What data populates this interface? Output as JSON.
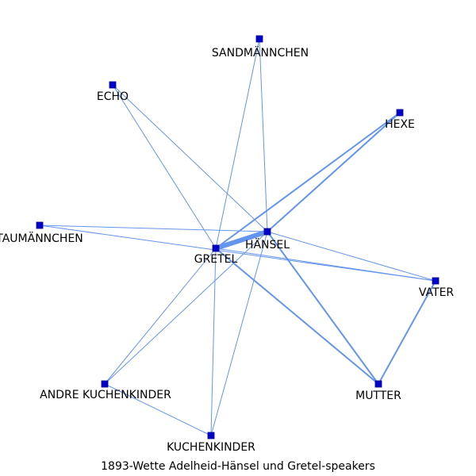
{
  "caption": "1893-Wette Adelheid-Hänsel und Gretel-speakers",
  "colors": {
    "edge": "#6495ed",
    "node_fill": "#0000cd",
    "node_stroke": "#00008b",
    "label": "#000000"
  },
  "nodes": [
    {
      "id": "sandmaennchen",
      "label": "SANDMÄNNCHEN"
    },
    {
      "id": "echo",
      "label": "ECHO"
    },
    {
      "id": "hexe",
      "label": "HEXE"
    },
    {
      "id": "taumaennchen",
      "label": "TAUMÄNNCHEN"
    },
    {
      "id": "haensel",
      "label": "HÄNSEL"
    },
    {
      "id": "gretel",
      "label": "GRETEL"
    },
    {
      "id": "vater",
      "label": "VATER"
    },
    {
      "id": "andre",
      "label": "ANDRE KUCHENKINDER"
    },
    {
      "id": "mutter",
      "label": "MUTTER"
    },
    {
      "id": "kuchenkinder",
      "label": "KUCHENKINDER"
    }
  ],
  "edges": [
    {
      "source": "gretel",
      "target": "haensel",
      "weight": 6
    },
    {
      "source": "gretel",
      "target": "hexe",
      "weight": 2
    },
    {
      "source": "haensel",
      "target": "hexe",
      "weight": 2
    },
    {
      "source": "gretel",
      "target": "mutter",
      "weight": 2
    },
    {
      "source": "haensel",
      "target": "mutter",
      "weight": 2
    },
    {
      "source": "vater",
      "target": "mutter",
      "weight": 2
    },
    {
      "source": "gretel",
      "target": "sandmaennchen",
      "weight": 1
    },
    {
      "source": "haensel",
      "target": "sandmaennchen",
      "weight": 1
    },
    {
      "source": "echo",
      "target": "gretel",
      "weight": 1
    },
    {
      "source": "echo",
      "target": "haensel",
      "weight": 1
    },
    {
      "source": "taumaennchen",
      "target": "haensel",
      "weight": 1
    },
    {
      "source": "taumaennchen",
      "target": "vater",
      "weight": 1
    },
    {
      "source": "gretel",
      "target": "vater",
      "weight": 1
    },
    {
      "source": "haensel",
      "target": "vater",
      "weight": 1
    },
    {
      "source": "andre",
      "target": "gretel",
      "weight": 1
    },
    {
      "source": "andre",
      "target": "haensel",
      "weight": 1
    },
    {
      "source": "andre",
      "target": "kuchenkinder",
      "weight": 1
    },
    {
      "source": "kuchenkinder",
      "target": "gretel",
      "weight": 1
    },
    {
      "source": "kuchenkinder",
      "target": "haensel",
      "weight": 1
    }
  ]
}
